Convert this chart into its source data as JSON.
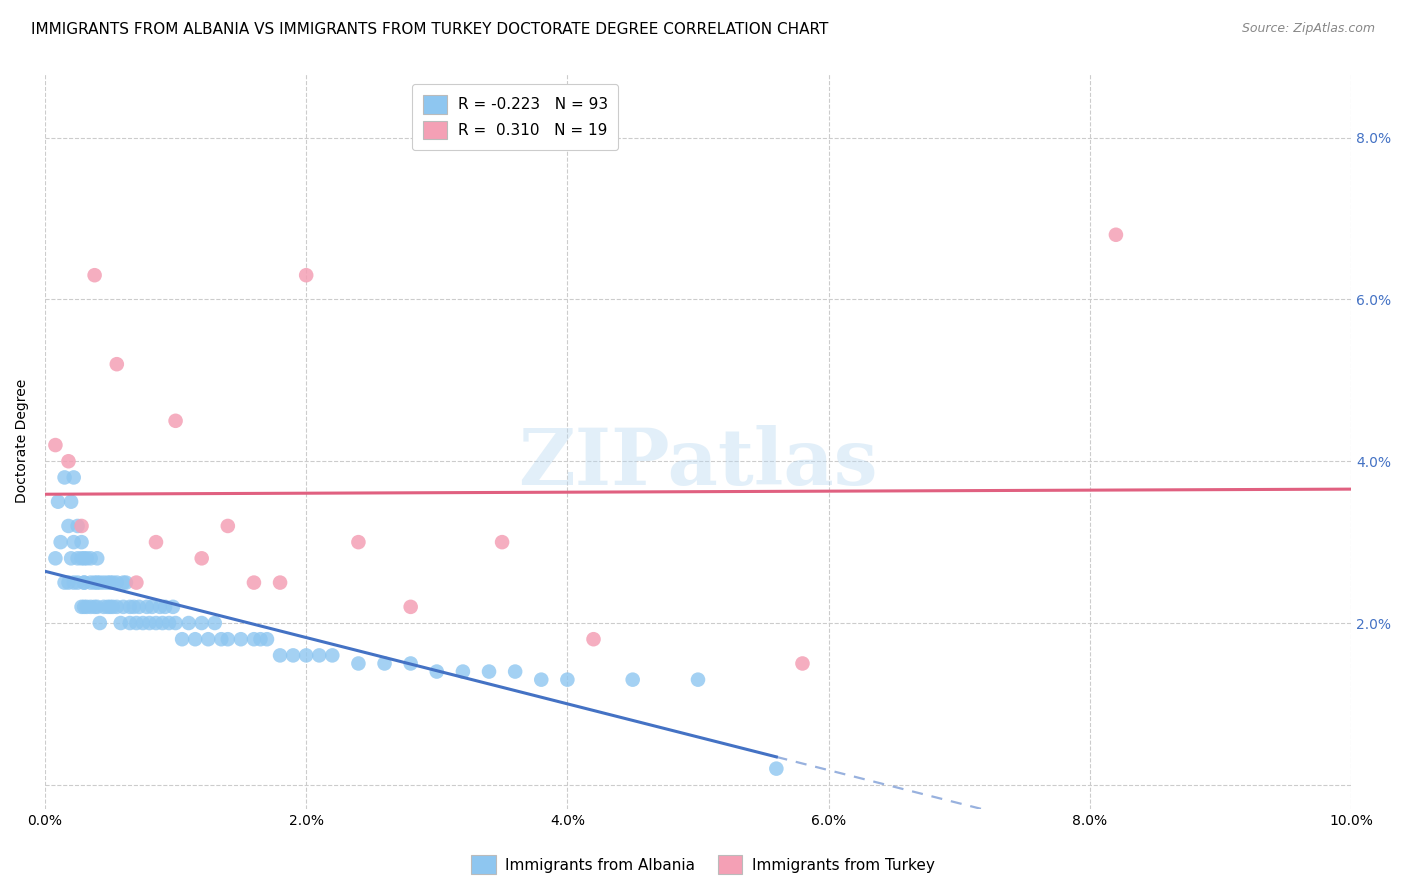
{
  "title": "IMMIGRANTS FROM ALBANIA VS IMMIGRANTS FROM TURKEY DOCTORATE DEGREE CORRELATION CHART",
  "source": "Source: ZipAtlas.com",
  "ylabel": "Doctorate Degree",
  "xlim": [
    0.0,
    0.1
  ],
  "ylim": [
    -0.003,
    0.088
  ],
  "albania_color": "#8EC6F0",
  "turkey_color": "#F4A0B5",
  "albania_line_color": "#4472C4",
  "turkey_line_color": "#E06080",
  "legend_albania_label": "R = -0.223   N = 93",
  "legend_turkey_label": "R =  0.310   N = 19",
  "bottom_legend_albania": "Immigrants from Albania",
  "bottom_legend_turkey": "Immigrants from Turkey",
  "albania_x": [
    0.0008,
    0.001,
    0.0012,
    0.0015,
    0.0015,
    0.0018,
    0.0018,
    0.002,
    0.002,
    0.0022,
    0.0022,
    0.0022,
    0.0025,
    0.0025,
    0.0025,
    0.0028,
    0.0028,
    0.0028,
    0.003,
    0.003,
    0.003,
    0.003,
    0.0032,
    0.0032,
    0.0035,
    0.0035,
    0.0035,
    0.0038,
    0.0038,
    0.004,
    0.004,
    0.004,
    0.0042,
    0.0042,
    0.0045,
    0.0045,
    0.0048,
    0.0048,
    0.005,
    0.005,
    0.0052,
    0.0052,
    0.0055,
    0.0055,
    0.0058,
    0.006,
    0.006,
    0.0062,
    0.0065,
    0.0065,
    0.0068,
    0.007,
    0.0072,
    0.0075,
    0.0078,
    0.008,
    0.0082,
    0.0085,
    0.0088,
    0.009,
    0.0092,
    0.0095,
    0.0098,
    0.01,
    0.0105,
    0.011,
    0.0115,
    0.012,
    0.0125,
    0.013,
    0.0135,
    0.014,
    0.015,
    0.016,
    0.0165,
    0.017,
    0.018,
    0.019,
    0.02,
    0.021,
    0.022,
    0.024,
    0.026,
    0.028,
    0.03,
    0.032,
    0.034,
    0.036,
    0.038,
    0.04,
    0.045,
    0.05,
    0.056
  ],
  "albania_y": [
    0.028,
    0.035,
    0.03,
    0.038,
    0.025,
    0.032,
    0.025,
    0.035,
    0.028,
    0.03,
    0.025,
    0.038,
    0.028,
    0.025,
    0.032,
    0.028,
    0.022,
    0.03,
    0.025,
    0.028,
    0.022,
    0.025,
    0.028,
    0.022,
    0.025,
    0.028,
    0.022,
    0.025,
    0.022,
    0.025,
    0.028,
    0.022,
    0.025,
    0.02,
    0.025,
    0.022,
    0.025,
    0.022,
    0.025,
    0.022,
    0.025,
    0.022,
    0.025,
    0.022,
    0.02,
    0.025,
    0.022,
    0.025,
    0.022,
    0.02,
    0.022,
    0.02,
    0.022,
    0.02,
    0.022,
    0.02,
    0.022,
    0.02,
    0.022,
    0.02,
    0.022,
    0.02,
    0.022,
    0.02,
    0.018,
    0.02,
    0.018,
    0.02,
    0.018,
    0.02,
    0.018,
    0.018,
    0.018,
    0.018,
    0.018,
    0.018,
    0.016,
    0.016,
    0.016,
    0.016,
    0.016,
    0.015,
    0.015,
    0.015,
    0.014,
    0.014,
    0.014,
    0.014,
    0.013,
    0.013,
    0.013,
    0.013,
    0.002
  ],
  "turkey_x": [
    0.0008,
    0.0018,
    0.0028,
    0.0038,
    0.0055,
    0.007,
    0.0085,
    0.01,
    0.012,
    0.014,
    0.016,
    0.018,
    0.02,
    0.024,
    0.028,
    0.035,
    0.042,
    0.058,
    0.082
  ],
  "turkey_y": [
    0.042,
    0.04,
    0.032,
    0.063,
    0.052,
    0.025,
    0.03,
    0.045,
    0.028,
    0.032,
    0.025,
    0.025,
    0.063,
    0.03,
    0.022,
    0.03,
    0.018,
    0.015,
    0.068
  ],
  "watermark": "ZIPatlas",
  "grid_color": "#CCCCCC",
  "background_color": "#FFFFFF",
  "title_fontsize": 11,
  "axis_label_fontsize": 10,
  "tick_fontsize": 10,
  "right_tick_color": "#4472C4",
  "x_ticks": [
    0.0,
    0.02,
    0.04,
    0.06,
    0.08,
    0.1
  ],
  "x_tick_labels": [
    "0.0%",
    "2.0%",
    "4.0%",
    "6.0%",
    "8.0%",
    "10.0%"
  ],
  "y_ticks": [
    0.0,
    0.02,
    0.04,
    0.06,
    0.08
  ],
  "y_tick_labels": [
    "",
    "2.0%",
    "4.0%",
    "6.0%",
    "8.0%"
  ]
}
